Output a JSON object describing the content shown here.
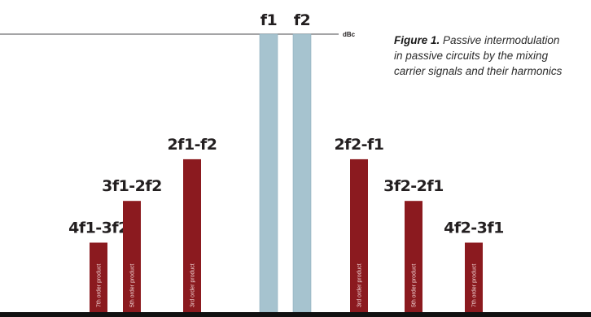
{
  "reference": {
    "label": "dBc",
    "line_color": "#6d6e71"
  },
  "colors": {
    "carrier": "#a6c3cf",
    "carrier_edge": "#8fb0bd",
    "imd": "#8b1a1f",
    "baseline": "#111111",
    "text": "#231f20"
  },
  "carriers": [
    {
      "label": "f1"
    },
    {
      "label": "f2"
    }
  ],
  "products": [
    {
      "label": "4f1-3f2",
      "order_label": "7th order product",
      "relative_level": 0.25
    },
    {
      "label": "3f1-2f2",
      "order_label": "5th order product",
      "relative_level": 0.4
    },
    {
      "label": "2f1-f2",
      "order_label": "3rd order product",
      "relative_level": 0.55
    },
    {
      "label": "2f2-f1",
      "order_label": "3rd order product",
      "relative_level": 0.55
    },
    {
      "label": "3f2-2f1",
      "order_label": "5th order product",
      "relative_level": 0.4
    },
    {
      "label": "4f2-3f1",
      "order_label": "7th order product",
      "relative_level": 0.25
    }
  ],
  "caption": {
    "title": "Figure 1.",
    "lines": [
      "Passive intermodulation",
      "in passive circuits by the mixing",
      "carrier signals and their harmonics"
    ]
  }
}
